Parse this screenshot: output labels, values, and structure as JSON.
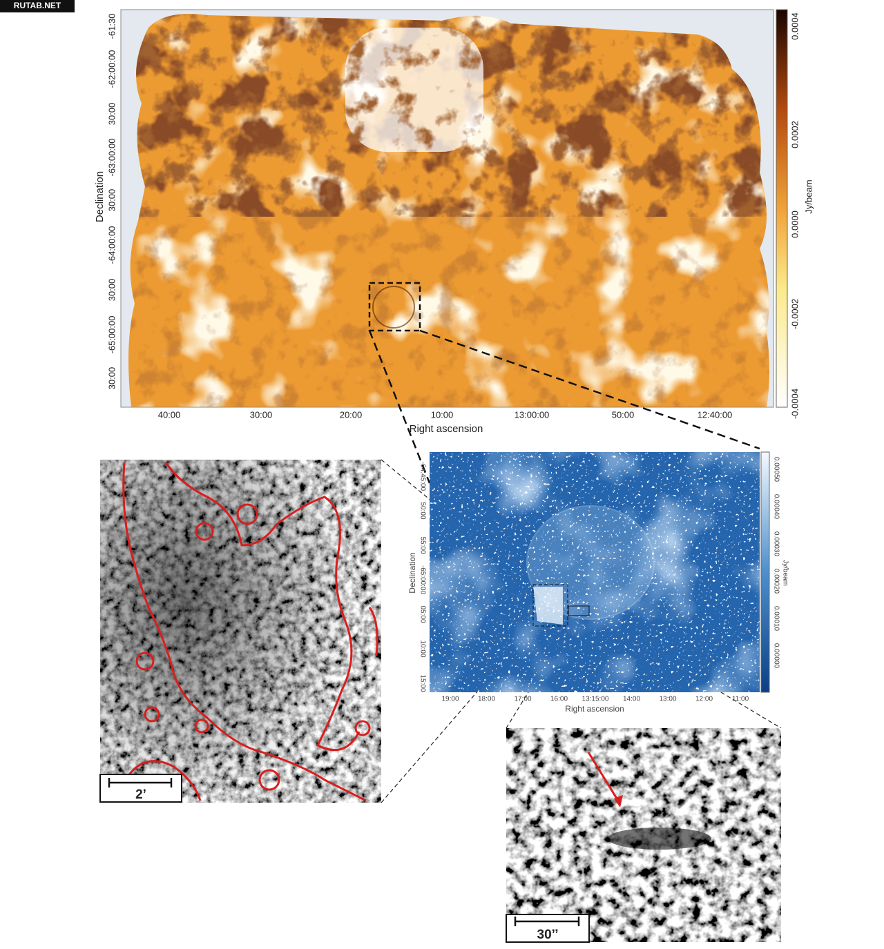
{
  "watermark": "RUTAB.NET",
  "main_panel": {
    "y_label": "Declination",
    "x_label": "Right ascension",
    "yticks": [
      "-61:30",
      "-62:00:00",
      "30:00",
      "-63:00:00",
      "30:00",
      "-64:00:00",
      "30:00",
      "-65:00:00",
      "30:00"
    ],
    "xticks": [
      "40:00",
      "30:00",
      "20:00",
      "10:00",
      "13:00:00",
      "50:00",
      "12:40:00"
    ],
    "colorbar": {
      "label": "Jy/beam",
      "ticks": [
        "0.0004",
        "0.0002",
        "0.0000",
        "-0.0002",
        "-0.0004"
      ]
    }
  },
  "inset_panel": {
    "y_label": "Declination",
    "x_label": "Right ascension",
    "yticks": [
      "-64:45:00",
      "50:00",
      "55:00",
      "-65:00:00",
      "05:00",
      "10:00",
      "15:00"
    ],
    "xticks": [
      "19:00",
      "18:00",
      "17:00",
      "16:00",
      "13:15:00",
      "14:00",
      "13:00",
      "12:00",
      "11:00"
    ],
    "colorbar": {
      "label": "Jy/beam",
      "ticks": [
        "0.00050",
        "0.00040",
        "0.00030",
        "0.00020",
        "0.00010",
        "0.00000"
      ]
    }
  },
  "zoom_left": {
    "scale_bar": "2’"
  },
  "zoom_right": {
    "scale_bar": "30’’"
  }
}
